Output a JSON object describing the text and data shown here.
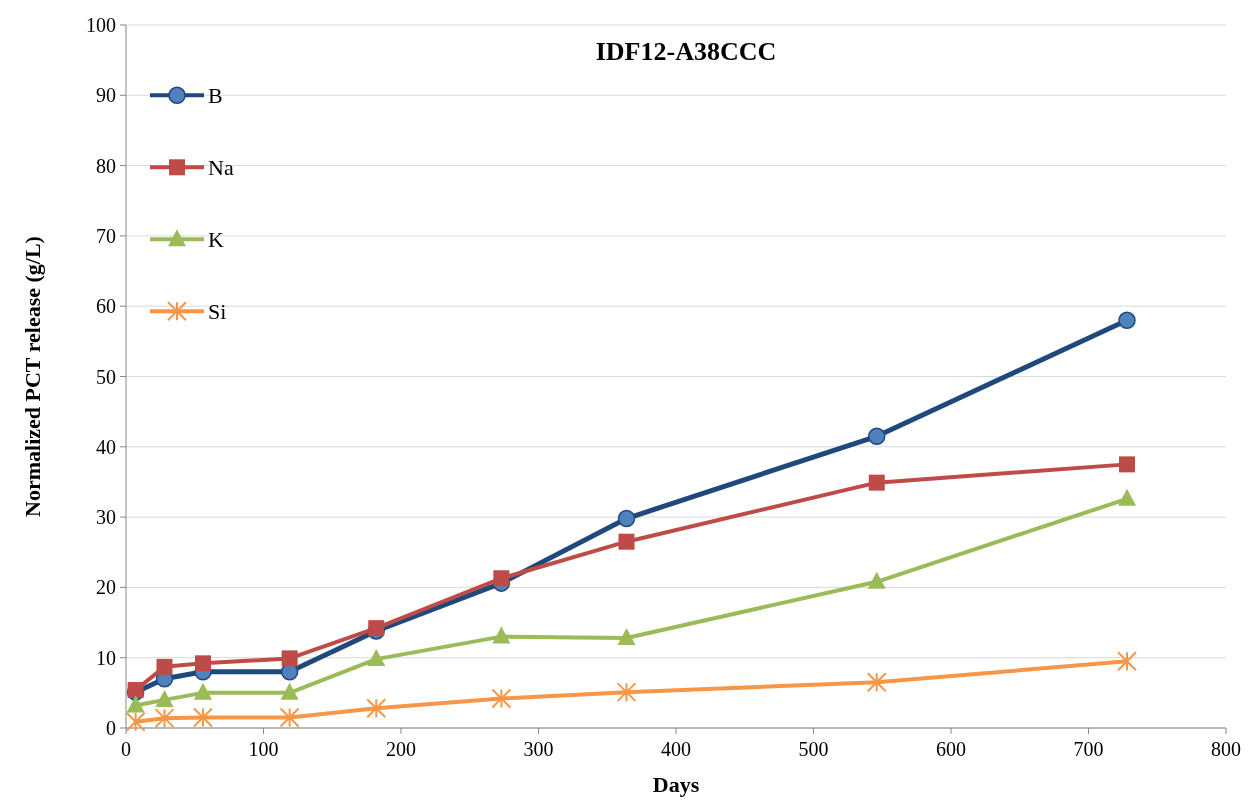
{
  "chart_data": {
    "type": "line",
    "title": "IDF12-A38CCC",
    "xlabel": "Days",
    "ylabel": "Normalized  PCT release (g/L)",
    "x": [
      7,
      28,
      56,
      119,
      182,
      273,
      364,
      546,
      728
    ],
    "xlim": [
      0,
      800
    ],
    "xticks": [
      0,
      100,
      200,
      300,
      400,
      500,
      600,
      700,
      800
    ],
    "ylim": [
      0,
      100
    ],
    "yticks": [
      0,
      10,
      20,
      30,
      40,
      50,
      60,
      70,
      80,
      90,
      100
    ],
    "grid": "y",
    "legend": "top left",
    "series": [
      {
        "name": "B",
        "color": "#1f497d",
        "marker": "circle",
        "values": [
          5.1,
          7,
          8,
          8,
          13.8,
          20.6,
          29.8,
          41.5,
          58
        ]
      },
      {
        "name": "Na",
        "color": "#be4b48",
        "marker": "square",
        "values": [
          5.4,
          8.7,
          9.2,
          9.9,
          14.2,
          21.3,
          26.5,
          34.9,
          37.5
        ]
      },
      {
        "name": "K",
        "color": "#9bbb59",
        "marker": "triangle",
        "values": [
          3.2,
          4,
          5,
          5,
          9.8,
          13,
          12.8,
          20.8,
          32.6
        ]
      },
      {
        "name": "Si",
        "color": "#f79646",
        "marker": "cross",
        "values": [
          0.9,
          1.4,
          1.5,
          1.5,
          2.8,
          4.2,
          5.1,
          6.5,
          9.5
        ]
      }
    ]
  }
}
